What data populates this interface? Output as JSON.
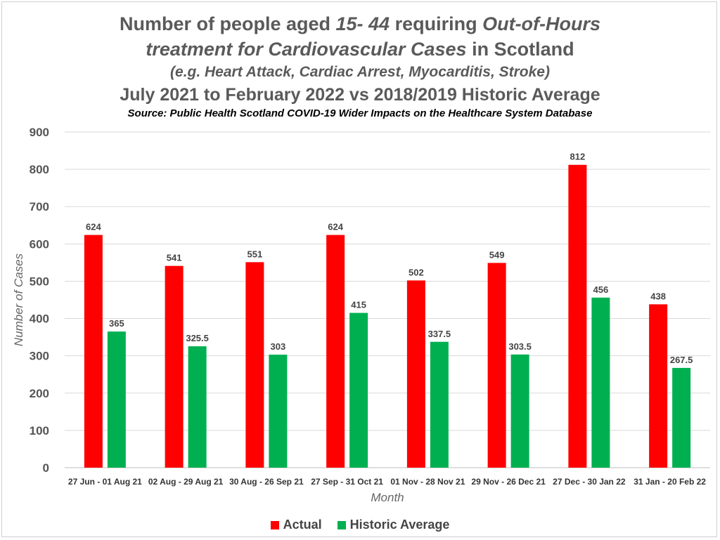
{
  "title": {
    "part1_pre": "Number of people aged ",
    "part1_em": "15- 44",
    "part1_mid": " requiring ",
    "part1_em2": "Out-of-Hours",
    "part2_em": "treatment for Cardiovascular Cases",
    "part2_post": " in Scotland",
    "line3": "(e.g. Heart Attack, Cardiac Arrest, Myocarditis, Stroke)",
    "line4": "July 2021 to February 2022 vs 2018/2019 Historic Average",
    "source": "Source: Public Health Scotland COVID-19 Wider Impacts on the Healthcare System Database"
  },
  "chart_data": {
    "type": "bar",
    "xlabel": "Month",
    "ylabel": "Number of Cases",
    "ylim": [
      0,
      900
    ],
    "yticks": [
      0,
      100,
      200,
      300,
      400,
      500,
      600,
      700,
      800,
      900
    ],
    "grid": true,
    "legend_position": "bottom",
    "categories": [
      "27 Jun - 01 Aug 21",
      "02 Aug - 29 Aug 21",
      "30 Aug - 26 Sep 21",
      "27 Sep - 31 Oct 21",
      "01 Nov - 28 Nov 21",
      "29 Nov - 26 Dec 21",
      "27 Dec - 30 Jan 22",
      "31 Jan - 20 Feb 22"
    ],
    "series": [
      {
        "name": "Actual",
        "color": "#ff0000",
        "values": [
          624,
          541,
          551,
          624,
          502,
          549,
          812,
          438
        ]
      },
      {
        "name": "Historic Average",
        "color": "#00b050",
        "values": [
          365,
          325.5,
          303,
          415,
          337.5,
          303.5,
          456,
          267.5
        ]
      }
    ]
  }
}
